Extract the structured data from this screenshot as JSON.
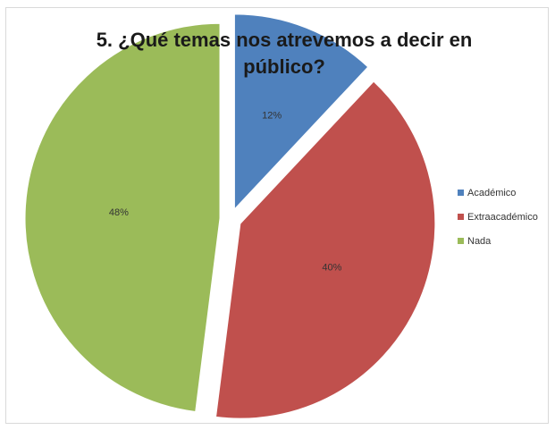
{
  "chart_data": {
    "type": "pie",
    "title_lines": [
      "5. ¿Qué temas nos atrevemos a decir en",
      "público?"
    ],
    "categories": [
      "Académico",
      "Extraacadémico",
      "Nada"
    ],
    "values": [
      12,
      40,
      48
    ],
    "labels": [
      "12%",
      "40%",
      "48%"
    ],
    "colors": [
      "#4f81bd",
      "#c0504d",
      "#9bbb59"
    ],
    "exploded": true,
    "start_angle_deg": 0,
    "direction": "clockwise",
    "legend_position": "right"
  }
}
